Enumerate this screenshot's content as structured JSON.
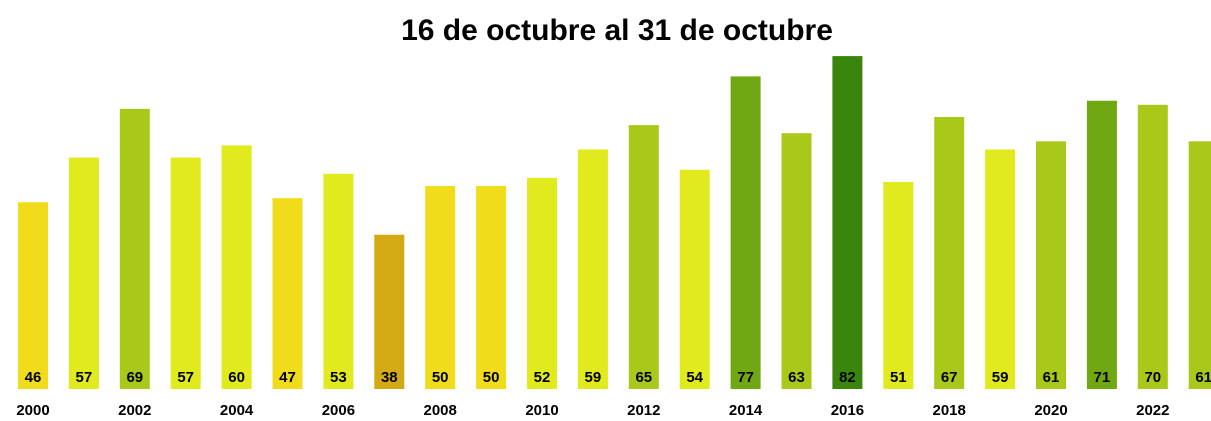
{
  "chart_data": {
    "type": "bar",
    "title": "16 de octubre al 31 de octubre",
    "categories": [
      "2000",
      null,
      "2002",
      null,
      "2004",
      null,
      "2006",
      null,
      "2008",
      null,
      "2010",
      null,
      "2012",
      null,
      "2014",
      null,
      "2016",
      null,
      "2018",
      null,
      "2020",
      null,
      "2022",
      null
    ],
    "values": [
      46,
      57,
      69,
      57,
      60,
      47,
      53,
      38,
      50,
      50,
      52,
      59,
      65,
      54,
      77,
      63,
      82,
      51,
      67,
      59,
      61,
      71,
      70,
      61
    ],
    "colors": [
      "#f0dc1a",
      "#e0ea1c",
      "#a8c81a",
      "#e0ea1c",
      "#e0ea1c",
      "#f0dc1a",
      "#e0ea1c",
      "#d4aa14",
      "#f0dc1a",
      "#f0dc1a",
      "#e0ea1c",
      "#e0ea1c",
      "#a8c81a",
      "#e0ea1c",
      "#6fa812",
      "#a8c81a",
      "#3a860c",
      "#e0ea1c",
      "#a8c81a",
      "#e0ea1c",
      "#a8c81a",
      "#6fa812",
      "#a8c81a",
      "#a8c81a"
    ]
  }
}
